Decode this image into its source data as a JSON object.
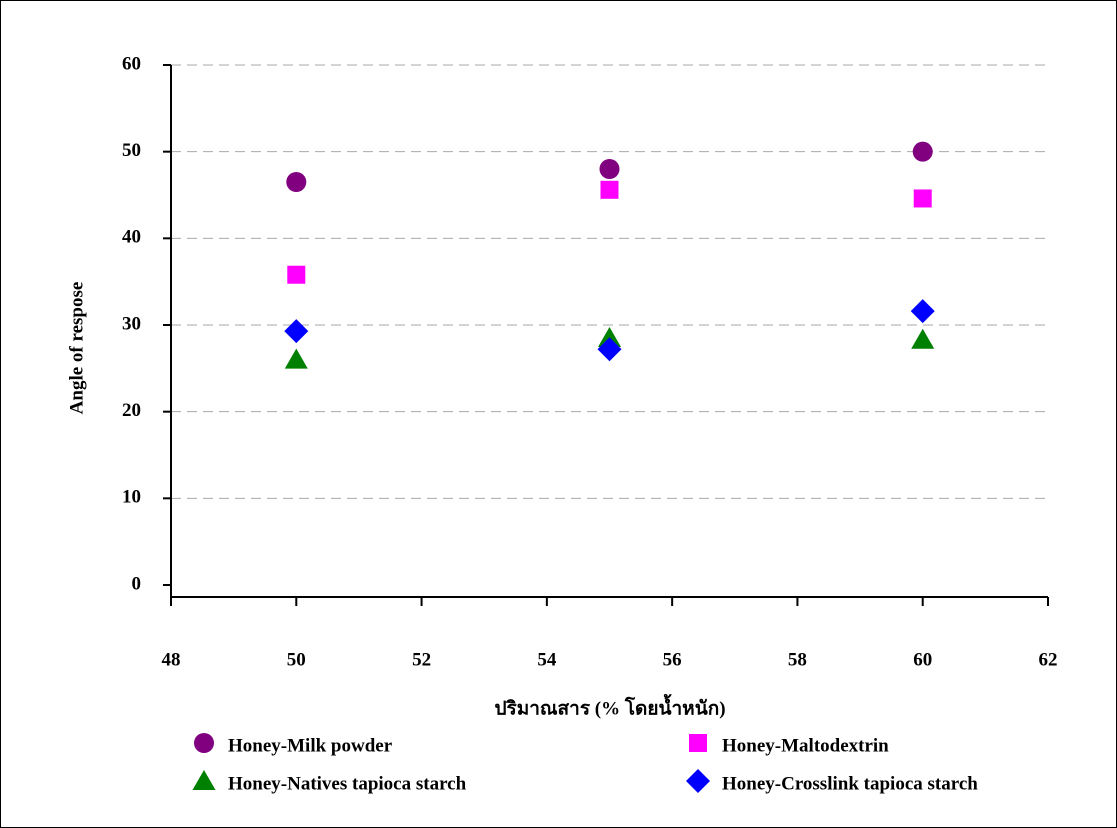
{
  "chart_data": {
    "type": "scatter",
    "x_label": "ปริมาณสาร (% โดยน้ำหนัก)",
    "y_label": "Angle of respose",
    "xlim": [
      48,
      62
    ],
    "xticks": [
      48,
      50,
      52,
      54,
      56,
      58,
      60,
      62
    ],
    "ylim": [
      0,
      60
    ],
    "yticks": [
      0,
      10,
      20,
      30,
      40,
      50,
      60
    ],
    "grid": true,
    "series": [
      {
        "name": "Honey-Milk powder",
        "color": "#800080",
        "marker": "circle",
        "x": [
          50,
          55,
          60
        ],
        "values": [
          46.5,
          48,
          50
        ]
      },
      {
        "name": "Honey-Maltodextrin",
        "color": "#ff00ff",
        "marker": "square",
        "x": [
          50,
          55,
          60
        ],
        "values": [
          35.8,
          45.6,
          44.6
        ]
      },
      {
        "name": "Honey-Natives tapioca starch",
        "color": "#008000",
        "marker": "triangle",
        "x": [
          50,
          55,
          60
        ],
        "values": [
          26,
          28.5,
          28.3
        ]
      },
      {
        "name": "Honey-Crosslink tapioca starch",
        "color": "#0000ff",
        "marker": "diamond",
        "x": [
          50,
          55,
          60
        ],
        "values": [
          29.3,
          27.2,
          31.6
        ]
      }
    ]
  }
}
